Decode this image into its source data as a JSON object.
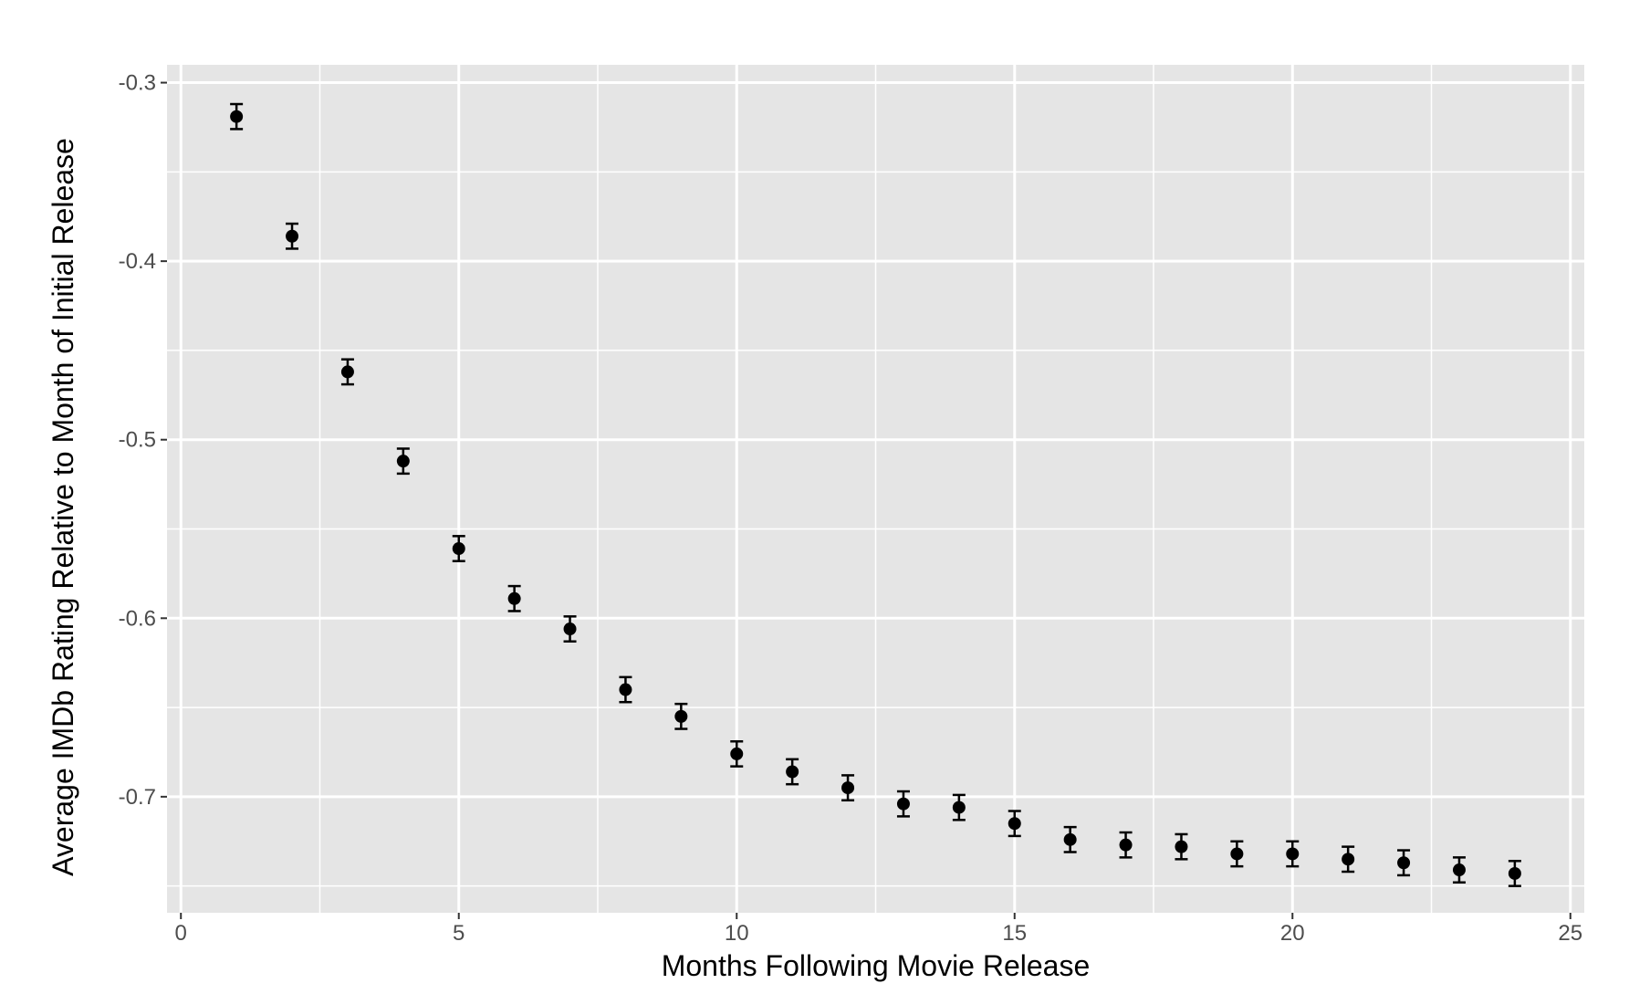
{
  "chart_data": {
    "type": "scatter",
    "title": "",
    "xlabel": "Months Following Movie Release",
    "ylabel": "Average IMDb Rating Relative to Month of Initial Release",
    "xlim": [
      -0.25,
      25.25
    ],
    "ylim": [
      -0.765,
      -0.29
    ],
    "x_ticks": [
      0,
      5,
      10,
      15,
      20,
      25
    ],
    "x_tick_labels": [
      "0",
      "5",
      "10",
      "15",
      "20",
      "25"
    ],
    "y_ticks": [
      -0.3,
      -0.4,
      -0.5,
      -0.6,
      -0.7
    ],
    "y_tick_labels": [
      "-0.3",
      "-0.4",
      "-0.5",
      "-0.6",
      "-0.7"
    ],
    "grid": true,
    "legend": "none",
    "error_bars": true,
    "colors": {
      "panel": "#e5e5e5",
      "grid": "#ffffff",
      "point": "#000000",
      "tick_text": "#4d4d4d",
      "tick_mark": "#333333"
    },
    "points": [
      {
        "x": 1,
        "y": -0.319,
        "lo": -0.326,
        "hi": -0.312
      },
      {
        "x": 2,
        "y": -0.386,
        "lo": -0.393,
        "hi": -0.379
      },
      {
        "x": 3,
        "y": -0.462,
        "lo": -0.469,
        "hi": -0.455
      },
      {
        "x": 4,
        "y": -0.512,
        "lo": -0.519,
        "hi": -0.505
      },
      {
        "x": 5,
        "y": -0.561,
        "lo": -0.568,
        "hi": -0.554
      },
      {
        "x": 6,
        "y": -0.589,
        "lo": -0.596,
        "hi": -0.582
      },
      {
        "x": 7,
        "y": -0.606,
        "lo": -0.613,
        "hi": -0.599
      },
      {
        "x": 8,
        "y": -0.64,
        "lo": -0.647,
        "hi": -0.633
      },
      {
        "x": 9,
        "y": -0.655,
        "lo": -0.662,
        "hi": -0.648
      },
      {
        "x": 10,
        "y": -0.676,
        "lo": -0.683,
        "hi": -0.669
      },
      {
        "x": 11,
        "y": -0.686,
        "lo": -0.693,
        "hi": -0.679
      },
      {
        "x": 12,
        "y": -0.695,
        "lo": -0.702,
        "hi": -0.688
      },
      {
        "x": 13,
        "y": -0.704,
        "lo": -0.711,
        "hi": -0.697
      },
      {
        "x": 14,
        "y": -0.706,
        "lo": -0.713,
        "hi": -0.699
      },
      {
        "x": 15,
        "y": -0.715,
        "lo": -0.722,
        "hi": -0.708
      },
      {
        "x": 16,
        "y": -0.724,
        "lo": -0.731,
        "hi": -0.717
      },
      {
        "x": 17,
        "y": -0.727,
        "lo": -0.734,
        "hi": -0.72
      },
      {
        "x": 18,
        "y": -0.728,
        "lo": -0.735,
        "hi": -0.721
      },
      {
        "x": 19,
        "y": -0.732,
        "lo": -0.739,
        "hi": -0.725
      },
      {
        "x": 20,
        "y": -0.732,
        "lo": -0.739,
        "hi": -0.725
      },
      {
        "x": 21,
        "y": -0.735,
        "lo": -0.742,
        "hi": -0.728
      },
      {
        "x": 22,
        "y": -0.737,
        "lo": -0.744,
        "hi": -0.73
      },
      {
        "x": 23,
        "y": -0.741,
        "lo": -0.748,
        "hi": -0.734
      },
      {
        "x": 24,
        "y": -0.743,
        "lo": -0.75,
        "hi": -0.736
      }
    ]
  }
}
